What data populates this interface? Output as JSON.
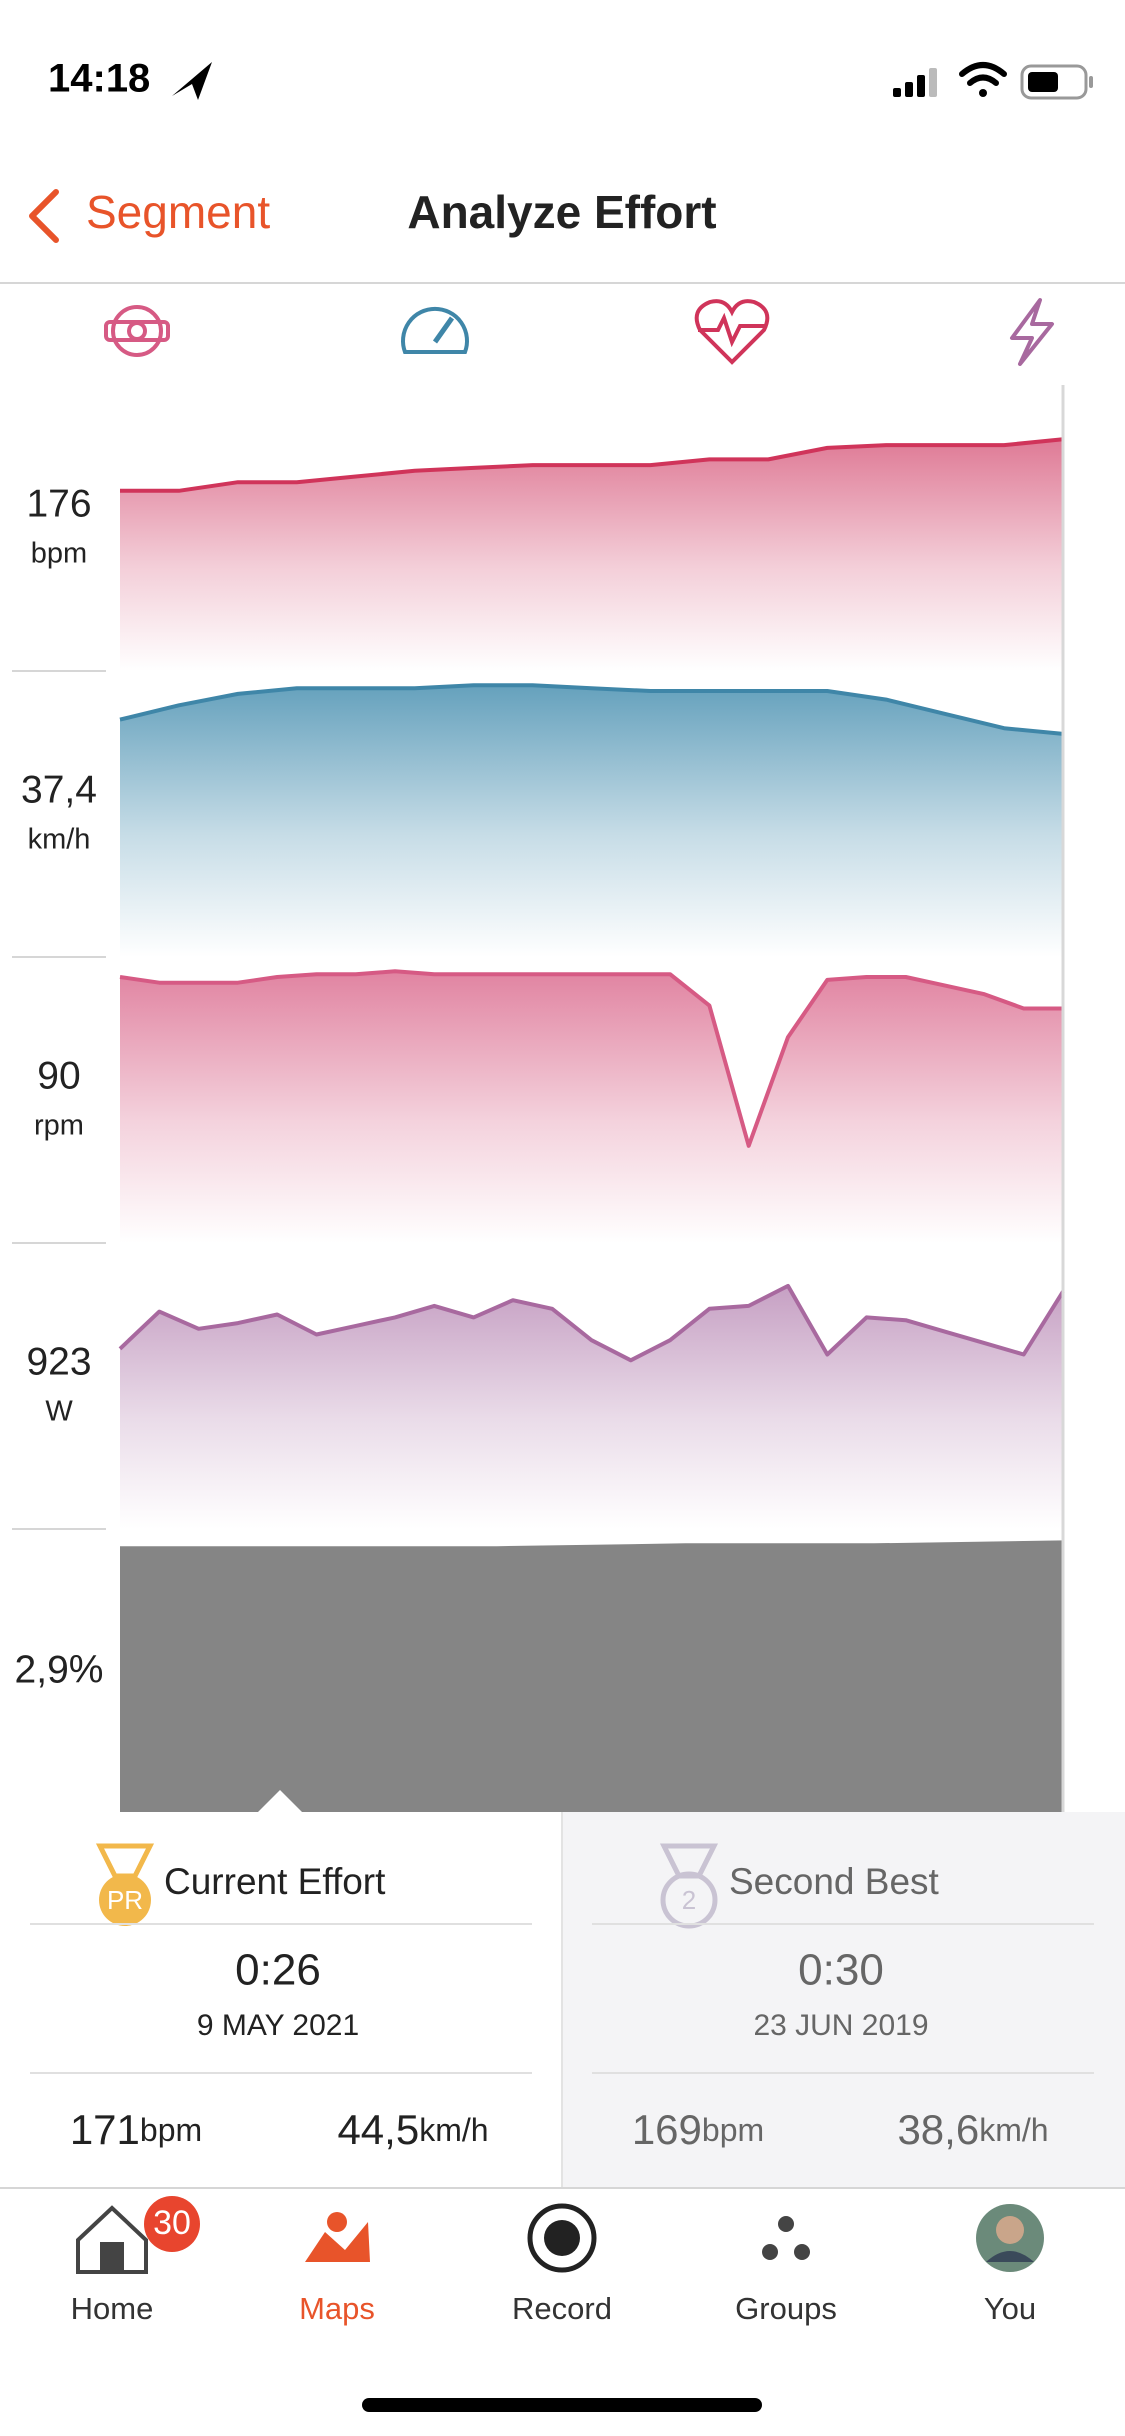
{
  "status_bar": {
    "time": "14:18"
  },
  "nav": {
    "back": "Segment",
    "title": "Analyze Effort"
  },
  "chart_data": [
    {
      "type": "area",
      "label": "176",
      "unit": "bpm",
      "color": "#d0345a",
      "fill_color": "#dd7390",
      "fill_style": "gradient",
      "ylim": [
        0,
        100
      ],
      "values": [
        63,
        63,
        66,
        66,
        68,
        70,
        71,
        72,
        72,
        72,
        74,
        74,
        78,
        79,
        79,
        79,
        81
      ]
    },
    {
      "type": "area",
      "label": "37,4",
      "unit": "km/h",
      "color": "#3f86a8",
      "fill_color": "#5d9cb9",
      "fill_style": "gradient",
      "ylim": [
        0,
        100
      ],
      "values": [
        83,
        88,
        92,
        94,
        94,
        94,
        95,
        95,
        94,
        93,
        93,
        93,
        93,
        90,
        85,
        80,
        78
      ]
    },
    {
      "type": "area",
      "label": "90",
      "unit": "rpm",
      "color": "#d65a84",
      "fill_color": "#df7d9c",
      "fill_style": "gradient",
      "ylim": [
        0,
        100
      ],
      "values": [
        93,
        91,
        91,
        91,
        93,
        94,
        94,
        95,
        94,
        94,
        94,
        94,
        94,
        94,
        94,
        83,
        34,
        72,
        92,
        93,
        93,
        90,
        87,
        82,
        82
      ]
    },
    {
      "type": "area",
      "label": "923",
      "unit": "W",
      "color": "#a8699f",
      "fill_color": "#c39bc0",
      "fill_style": "gradient",
      "ylim": [
        0,
        100
      ],
      "values": [
        63,
        76,
        70,
        72,
        75,
        68,
        71,
        74,
        78,
        74,
        80,
        77,
        66,
        59,
        66,
        77,
        78,
        85,
        61,
        74,
        73,
        69,
        65,
        61,
        83
      ]
    },
    {
      "type": "area",
      "label": "2,9%",
      "color": "#858585",
      "fill_color": "#858585",
      "fill_style": "solid",
      "ylim": [
        0,
        100
      ],
      "values": [
        94,
        94,
        94,
        95,
        95,
        96
      ]
    }
  ],
  "comparison": {
    "current": {
      "badge": "PR",
      "title": "Current Effort",
      "time": "0:26",
      "date": "9 MAY 2021",
      "hr": "171",
      "hr_unit": "bpm",
      "speed": "44,5",
      "speed_unit": "km/h"
    },
    "second": {
      "badge": "2",
      "title": "Second Best",
      "time": "0:30",
      "date": "23 JUN 2019",
      "hr": "169",
      "hr_unit": "bpm",
      "speed": "38,6",
      "speed_unit": "km/h"
    }
  },
  "tab_bar": {
    "badge": "30",
    "tabs": [
      "Home",
      "Maps",
      "Record",
      "Groups",
      "You"
    ]
  }
}
